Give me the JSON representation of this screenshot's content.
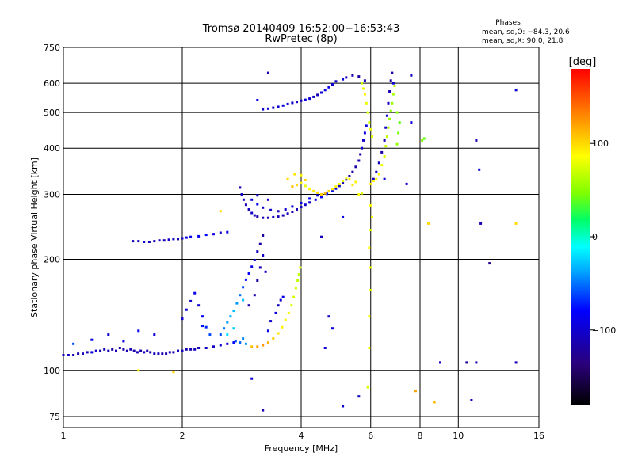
{
  "header": {
    "title": "Tromsø 20140409 16:52:00−16:53:43",
    "subtitle": "RwPretec (8p)"
  },
  "phase_box": {
    "title": "Phases",
    "line_o": "mean, sd,O: −84.3, 20.6",
    "line_x": "mean, sd,X:  90.0, 21.8"
  },
  "colorbar": {
    "unit": "[deg]",
    "ticks": [
      {
        "value": 100,
        "label": "100"
      },
      {
        "value": 0,
        "label": "0"
      },
      {
        "value": -100,
        "label": "−100"
      }
    ],
    "range": [
      -180,
      180
    ],
    "colors": [
      "#000000",
      "#2a007a",
      "#0000ff",
      "#00aaff",
      "#00ffff",
      "#00ff66",
      "#7fff00",
      "#ffff00",
      "#ff8800",
      "#ff0000"
    ]
  },
  "chart_data": {
    "type": "scatter",
    "title": "Tromsø 20140409 16:52:00−16:53:43",
    "subtitle": "RwPretec (8p)",
    "xlabel": "Frequency [MHz]",
    "ylabel": "Stationary phase Virtual Height [km]",
    "xscale": "log",
    "yscale": "log",
    "xlim": [
      1,
      16
    ],
    "ylim": [
      70,
      750
    ],
    "xticks": [
      {
        "value": 1,
        "label": "1"
      },
      {
        "value": 2,
        "label": "2"
      },
      {
        "value": 4,
        "label": "4"
      },
      {
        "value": 6,
        "label": "6"
      },
      {
        "value": 8,
        "label": "8"
      },
      {
        "value": 10,
        "label": "10"
      },
      {
        "value": 16,
        "label": "16"
      }
    ],
    "yticks": [
      {
        "value": 75,
        "label": "75"
      },
      {
        "value": 100,
        "label": "100"
      },
      {
        "value": 200,
        "label": "200"
      },
      {
        "value": 300,
        "label": "300"
      },
      {
        "value": 400,
        "label": "400"
      },
      {
        "value": 500,
        "label": "500"
      },
      {
        "value": 600,
        "label": "600"
      },
      {
        "value": 750,
        "label": "750"
      }
    ],
    "grid": true,
    "color_scale": "phase [deg]",
    "points": [
      [
        1.0,
        110,
        -110
      ],
      [
        1.03,
        110,
        -105
      ],
      [
        1.06,
        110,
        -108
      ],
      [
        1.09,
        111,
        -112
      ],
      [
        1.12,
        111,
        -110
      ],
      [
        1.15,
        112,
        -106
      ],
      [
        1.18,
        112,
        -95
      ],
      [
        1.21,
        113,
        -100
      ],
      [
        1.24,
        113,
        -115
      ],
      [
        1.27,
        114,
        -112
      ],
      [
        1.3,
        113,
        -108
      ],
      [
        1.33,
        114,
        -118
      ],
      [
        1.36,
        113,
        -110
      ],
      [
        1.39,
        115,
        -120
      ],
      [
        1.42,
        114,
        -114
      ],
      [
        1.45,
        113,
        -112
      ],
      [
        1.48,
        114,
        -109
      ],
      [
        1.51,
        113,
        -116
      ],
      [
        1.54,
        112,
        -111
      ],
      [
        1.57,
        113,
        -113
      ],
      [
        1.6,
        112,
        -107
      ],
      [
        1.63,
        113,
        -112
      ],
      [
        1.66,
        112,
        -115
      ],
      [
        1.7,
        111,
        -110
      ],
      [
        1.74,
        111,
        -108
      ],
      [
        1.78,
        111,
        -112
      ],
      [
        1.82,
        111,
        -115
      ],
      [
        1.86,
        112,
        -110
      ],
      [
        1.9,
        112,
        -113
      ],
      [
        1.95,
        113,
        -111
      ],
      [
        2.0,
        113,
        -109
      ],
      [
        2.05,
        114,
        -112
      ],
      [
        2.1,
        114,
        -110
      ],
      [
        2.15,
        114,
        -108
      ],
      [
        2.2,
        115,
        -110
      ],
      [
        2.3,
        115,
        -107
      ],
      [
        2.4,
        116,
        -105
      ],
      [
        2.5,
        117,
        -100
      ],
      [
        2.6,
        118,
        -95
      ],
      [
        2.7,
        119,
        -80
      ],
      [
        2.8,
        119,
        -55
      ],
      [
        2.9,
        118,
        -40
      ],
      [
        2.73,
        120,
        -60
      ],
      [
        2.85,
        122,
        -45
      ],
      [
        1.06,
        118,
        -60
      ],
      [
        1.18,
        121,
        -90
      ],
      [
        1.3,
        125,
        -100
      ],
      [
        1.42,
        120,
        -95
      ],
      [
        1.55,
        128,
        -85
      ],
      [
        1.7,
        125,
        -95
      ],
      [
        3.0,
        116,
        110
      ],
      [
        3.1,
        116,
        120
      ],
      [
        3.2,
        117,
        125
      ],
      [
        3.3,
        119,
        115
      ],
      [
        3.4,
        122,
        105
      ],
      [
        3.5,
        126,
        95
      ],
      [
        3.58,
        131,
        90
      ],
      [
        3.65,
        137,
        85
      ],
      [
        3.72,
        143,
        80
      ],
      [
        3.78,
        150,
        75
      ],
      [
        3.83,
        158,
        72
      ],
      [
        3.88,
        167,
        70
      ],
      [
        3.92,
        175,
        68
      ],
      [
        3.95,
        182,
        66
      ],
      [
        3.98,
        190,
        70
      ],
      [
        3.3,
        128,
        -90
      ],
      [
        3.35,
        136,
        -100
      ],
      [
        3.45,
        143,
        -95
      ],
      [
        3.5,
        150,
        -105
      ],
      [
        3.55,
        155,
        -100
      ],
      [
        3.6,
        158,
        -90
      ],
      [
        2.0,
        138,
        -100
      ],
      [
        2.05,
        146,
        -95
      ],
      [
        2.1,
        154,
        -105
      ],
      [
        2.15,
        162,
        -90
      ],
      [
        2.2,
        150,
        -100
      ],
      [
        2.25,
        140,
        -85
      ],
      [
        2.3,
        131,
        -70
      ],
      [
        2.35,
        125,
        -60
      ],
      [
        2.25,
        132,
        -75
      ],
      [
        2.5,
        125,
        -60
      ],
      [
        2.55,
        130,
        -50
      ],
      [
        2.6,
        135,
        -40
      ],
      [
        2.65,
        140,
        -35
      ],
      [
        2.7,
        145,
        -30
      ],
      [
        2.75,
        152,
        -40
      ],
      [
        2.8,
        160,
        -50
      ],
      [
        2.85,
        168,
        -60
      ],
      [
        2.9,
        176,
        -75
      ],
      [
        2.95,
        183,
        -85
      ],
      [
        3.0,
        191,
        -95
      ],
      [
        3.05,
        199,
        -105
      ],
      [
        3.1,
        210,
        -110
      ],
      [
        3.15,
        220,
        -115
      ],
      [
        3.2,
        232,
        -120
      ],
      [
        2.85,
        155,
        -30
      ],
      [
        2.7,
        130,
        -25
      ],
      [
        2.6,
        125,
        -20
      ],
      [
        2.95,
        150,
        -110
      ],
      [
        3.05,
        160,
        -115
      ],
      [
        3.1,
        175,
        -120
      ],
      [
        3.15,
        190,
        -110
      ],
      [
        3.2,
        205,
        -105
      ],
      [
        3.25,
        185,
        -100
      ],
      [
        1.5,
        224,
        -105
      ],
      [
        1.55,
        224,
        -110
      ],
      [
        1.6,
        223,
        -100
      ],
      [
        1.65,
        223,
        -108
      ],
      [
        1.7,
        224,
        -112
      ],
      [
        1.75,
        225,
        -105
      ],
      [
        1.8,
        225,
        -110
      ],
      [
        1.85,
        226,
        -100
      ],
      [
        1.9,
        227,
        -108
      ],
      [
        1.95,
        227,
        -112
      ],
      [
        2.0,
        228,
        -105
      ],
      [
        2.05,
        229,
        -95
      ],
      [
        2.1,
        230,
        -90
      ],
      [
        2.2,
        231,
        -85
      ],
      [
        2.3,
        233,
        -80
      ],
      [
        2.4,
        234,
        -95
      ],
      [
        2.5,
        236,
        -100
      ],
      [
        2.6,
        237,
        -95
      ],
      [
        2.8,
        313,
        -110
      ],
      [
        2.83,
        300,
        -105
      ],
      [
        2.86,
        290,
        -108
      ],
      [
        2.9,
        281,
        -112
      ],
      [
        2.95,
        273,
        -110
      ],
      [
        3.0,
        267,
        -106
      ],
      [
        3.05,
        263,
        -110
      ],
      [
        3.1,
        261,
        -115
      ],
      [
        3.2,
        259,
        -112
      ],
      [
        3.3,
        259,
        -110
      ],
      [
        3.4,
        260,
        -108
      ],
      [
        3.5,
        261,
        -112
      ],
      [
        3.6,
        263,
        -110
      ],
      [
        3.7,
        266,
        -108
      ],
      [
        3.8,
        269,
        -112
      ],
      [
        3.9,
        273,
        -110
      ],
      [
        4.0,
        277,
        -105
      ],
      [
        4.1,
        281,
        -100
      ],
      [
        4.2,
        285,
        -95
      ],
      [
        4.35,
        290,
        -90
      ],
      [
        4.5,
        295,
        -85
      ],
      [
        4.65,
        301,
        -80
      ],
      [
        4.8,
        306,
        -75
      ],
      [
        4.9,
        311,
        -100
      ],
      [
        5.0,
        316,
        -105
      ],
      [
        5.1,
        322,
        -110
      ],
      [
        5.2,
        329,
        -112
      ],
      [
        5.3,
        336,
        -115
      ],
      [
        5.4,
        345,
        -118
      ],
      [
        5.5,
        356,
        -120
      ],
      [
        5.6,
        370,
        -115
      ],
      [
        5.65,
        385,
        -110
      ],
      [
        5.7,
        400,
        -105
      ],
      [
        5.75,
        420,
        -100
      ],
      [
        5.8,
        440,
        -95
      ],
      [
        5.85,
        460,
        -90
      ],
      [
        3.0,
        290,
        -95
      ],
      [
        3.1,
        282,
        -90
      ],
      [
        3.2,
        276,
        -100
      ],
      [
        3.35,
        272,
        -105
      ],
      [
        3.5,
        270,
        -110
      ],
      [
        3.65,
        273,
        -100
      ],
      [
        3.8,
        278,
        -95
      ],
      [
        4.0,
        284,
        -90
      ],
      [
        4.2,
        292,
        -85
      ],
      [
        4.4,
        298,
        -95
      ],
      [
        3.1,
        298,
        -100
      ],
      [
        3.3,
        290,
        -105
      ],
      [
        3.8,
        315,
        110
      ],
      [
        3.9,
        318,
        100
      ],
      [
        4.0,
        322,
        90
      ],
      [
        4.1,
        316,
        80
      ],
      [
        4.2,
        310,
        85
      ],
      [
        4.3,
        306,
        95
      ],
      [
        4.4,
        303,
        100
      ],
      [
        4.5,
        300,
        105
      ],
      [
        4.6,
        302,
        110
      ],
      [
        4.7,
        306,
        100
      ],
      [
        4.8,
        310,
        95
      ],
      [
        4.9,
        315,
        90
      ],
      [
        5.0,
        320,
        85
      ],
      [
        5.1,
        326,
        80
      ],
      [
        5.2,
        332,
        85
      ],
      [
        5.3,
        330,
        90
      ],
      [
        3.7,
        330,
        100
      ],
      [
        3.85,
        340,
        95
      ],
      [
        4.0,
        338,
        90
      ],
      [
        4.1,
        328,
        100
      ],
      [
        5.4,
        318,
        95
      ],
      [
        5.5,
        324,
        90
      ],
      [
        5.6,
        300,
        85
      ],
      [
        5.7,
        302,
        80
      ],
      [
        6.1,
        330,
        -110
      ],
      [
        6.2,
        345,
        -105
      ],
      [
        6.3,
        365,
        -110
      ],
      [
        6.4,
        390,
        -115
      ],
      [
        6.5,
        420,
        -110
      ],
      [
        6.55,
        455,
        -105
      ],
      [
        6.6,
        490,
        -100
      ],
      [
        6.65,
        530,
        -110
      ],
      [
        6.7,
        570,
        -115
      ],
      [
        6.75,
        610,
        -120
      ],
      [
        6.8,
        640,
        -115
      ],
      [
        6.85,
        600,
        -100
      ],
      [
        6.2,
        330,
        90
      ],
      [
        6.3,
        340,
        85
      ],
      [
        6.4,
        360,
        80
      ],
      [
        6.5,
        380,
        75
      ],
      [
        6.55,
        405,
        70
      ],
      [
        6.6,
        430,
        65
      ],
      [
        6.65,
        455,
        60
      ],
      [
        6.7,
        480,
        55
      ],
      [
        6.75,
        505,
        50
      ],
      [
        6.8,
        530,
        55
      ],
      [
        6.85,
        560,
        60
      ],
      [
        6.9,
        590,
        65
      ],
      [
        6.0,
        320,
        95
      ],
      [
        6.1,
        326,
        90
      ],
      [
        7.0,
        500,
        50
      ],
      [
        7.1,
        470,
        40
      ],
      [
        7.05,
        440,
        45
      ],
      [
        7.0,
        410,
        55
      ],
      [
        3.2,
        510,
        -100
      ],
      [
        3.3,
        512,
        -95
      ],
      [
        3.4,
        515,
        -105
      ],
      [
        3.5,
        518,
        -100
      ],
      [
        3.6,
        522,
        -95
      ],
      [
        3.7,
        527,
        -90
      ],
      [
        3.8,
        531,
        -100
      ],
      [
        3.9,
        534,
        -105
      ],
      [
        4.0,
        538,
        -100
      ],
      [
        4.1,
        541,
        -95
      ],
      [
        4.2,
        545,
        -100
      ],
      [
        4.3,
        551,
        -105
      ],
      [
        4.4,
        558,
        -110
      ],
      [
        4.5,
        566,
        -100
      ],
      [
        4.6,
        575,
        -95
      ],
      [
        4.7,
        585,
        -90
      ],
      [
        4.8,
        596,
        -100
      ],
      [
        4.9,
        607,
        -105
      ],
      [
        5.1,
        615,
        -95
      ],
      [
        5.2,
        622,
        -110
      ],
      [
        5.4,
        630,
        -115
      ],
      [
        5.6,
        626,
        -120
      ],
      [
        5.8,
        610,
        -110
      ],
      [
        3.1,
        540,
        -95
      ],
      [
        5.7,
        600,
        70
      ],
      [
        5.75,
        580,
        80
      ],
      [
        5.8,
        560,
        90
      ],
      [
        5.85,
        530,
        80
      ],
      [
        5.9,
        500,
        75
      ],
      [
        5.95,
        470,
        70
      ],
      [
        6.0,
        450,
        80
      ],
      [
        6.05,
        430,
        75
      ],
      [
        5.9,
        90,
        75
      ],
      [
        5.95,
        115,
        80
      ],
      [
        5.95,
        140,
        85
      ],
      [
        6.0,
        165,
        75
      ],
      [
        6.0,
        190,
        80
      ],
      [
        5.95,
        215,
        85
      ],
      [
        6.0,
        240,
        75
      ],
      [
        6.05,
        260,
        80
      ],
      [
        6.0,
        280,
        85
      ],
      [
        7.6,
        470,
        -100
      ],
      [
        8.1,
        420,
        50
      ],
      [
        8.2,
        425,
        40
      ],
      [
        8.4,
        250,
        100
      ],
      [
        7.8,
        88,
        120
      ],
      [
        8.7,
        82,
        110
      ],
      [
        9.0,
        105,
        -100
      ],
      [
        10.5,
        105,
        -120
      ],
      [
        10.8,
        83,
        -110
      ],
      [
        11.1,
        420,
        -110
      ],
      [
        11.3,
        350,
        -100
      ],
      [
        11.4,
        250,
        -110
      ],
      [
        11.1,
        105,
        -115
      ],
      [
        12.0,
        195,
        -130
      ],
      [
        14.0,
        575,
        -100
      ],
      [
        14.0,
        105,
        -110
      ],
      [
        14.0,
        250,
        100
      ],
      [
        4.5,
        230,
        -110
      ],
      [
        4.7,
        140,
        -105
      ],
      [
        4.6,
        115,
        -100
      ],
      [
        4.8,
        130,
        -95
      ],
      [
        5.1,
        260,
        -90
      ],
      [
        5.1,
        80,
        -100
      ],
      [
        5.6,
        85,
        -105
      ],
      [
        3.2,
        78,
        -110
      ],
      [
        3.0,
        95,
        -100
      ],
      [
        2.5,
        270,
        100
      ],
      [
        1.9,
        99,
        100
      ],
      [
        1.55,
        100,
        90
      ],
      [
        7.6,
        630,
        -105
      ],
      [
        7.4,
        320,
        -100
      ],
      [
        6.5,
        330,
        -100
      ],
      [
        3.3,
        640,
        -110
      ]
    ]
  }
}
